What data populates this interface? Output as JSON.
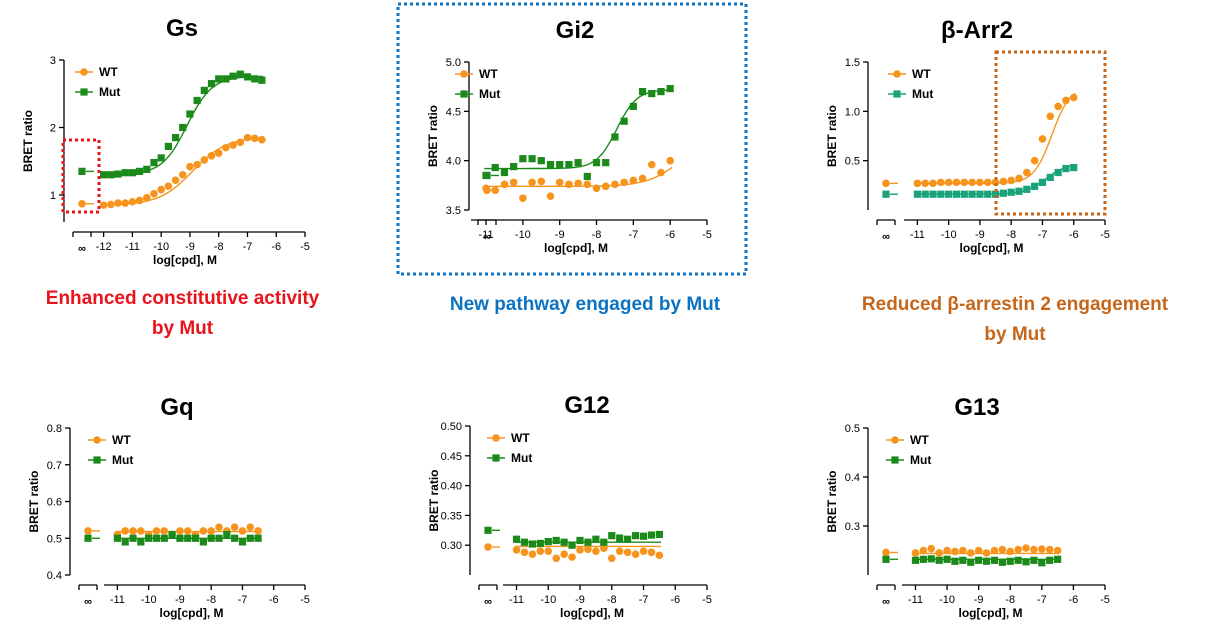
{
  "colors": {
    "wt": "#f7941d",
    "mut": "#1b8a1b",
    "mut_barr": "#1aa37a",
    "red": "#e8131b",
    "blue": "#0c72c2",
    "brown": "#c5661a"
  },
  "captions": [
    {
      "lines": [
        "Enhanced constitutive activity",
        "by Mut"
      ],
      "color_key": "red"
    },
    {
      "lines": [
        "New pathway engaged by Mut"
      ],
      "color_key": "blue"
    },
    {
      "lines": [
        "Reduced β-arrestin 2 engagement",
        "by Mut"
      ],
      "color_key": "brown"
    }
  ],
  "chart_data": [
    {
      "type": "scatter",
      "title": "Gs",
      "xlabel": "log[cpd], M",
      "ylabel": "BRET ratio",
      "xlim": [
        -12.3,
        -5
      ],
      "ylim": [
        0.6,
        3
      ],
      "xticks": [
        -12,
        -11,
        -10,
        -9,
        -8,
        -7,
        -6,
        -5
      ],
      "yticks": [
        1,
        2,
        3
      ],
      "ytick_labels": [
        "1",
        "2",
        "3"
      ],
      "break_tick_label": "∞",
      "legend": "top-left",
      "series": [
        {
          "name": "WT",
          "marker": "circle",
          "color_key": "wt",
          "basal": 0.87,
          "x": [
            -12,
            -11.75,
            -11.5,
            -11.25,
            -11,
            -10.75,
            -10.5,
            -10.25,
            -10,
            -9.75,
            -9.5,
            -9.25,
            -9,
            -8.75,
            -8.5,
            -8.25,
            -8,
            -7.75,
            -7.5,
            -7.25,
            -7,
            -6.75,
            -6.5
          ],
          "y": [
            0.85,
            0.86,
            0.88,
            0.88,
            0.9,
            0.92,
            0.96,
            1.02,
            1.08,
            1.13,
            1.22,
            1.3,
            1.42,
            1.45,
            1.52,
            1.58,
            1.62,
            1.7,
            1.74,
            1.78,
            1.85,
            1.84,
            1.82
          ],
          "fit": {
            "bottom": 0.85,
            "top": 1.86,
            "ec50": -8.9,
            "hill": 0.75
          }
        },
        {
          "name": "Mut",
          "marker": "square",
          "color_key": "mut",
          "basal": 1.35,
          "x": [
            -12,
            -11.75,
            -11.5,
            -11.25,
            -11,
            -10.75,
            -10.5,
            -10.25,
            -10,
            -9.75,
            -9.5,
            -9.25,
            -9,
            -8.75,
            -8.5,
            -8.25,
            -8,
            -7.75,
            -7.5,
            -7.25,
            -7,
            -6.75,
            -6.5
          ],
          "y": [
            1.3,
            1.3,
            1.31,
            1.33,
            1.33,
            1.35,
            1.38,
            1.48,
            1.55,
            1.72,
            1.85,
            2.0,
            2.2,
            2.4,
            2.55,
            2.65,
            2.72,
            2.72,
            2.76,
            2.79,
            2.75,
            2.72,
            2.7
          ],
          "fit": {
            "bottom": 1.3,
            "top": 2.76,
            "ec50": -9.1,
            "hill": 1.0
          }
        }
      ]
    },
    {
      "type": "scatter",
      "title": "Gi2",
      "xlabel": "log[cpd], M",
      "ylabel": "BRET ratio",
      "xlim": [
        -11.3,
        -5
      ],
      "ylim": [
        3.5,
        5.0
      ],
      "xticks": [
        -11,
        -10,
        -9,
        -8,
        -7,
        -6,
        -5
      ],
      "yticks": [
        3.5,
        4.0,
        4.5,
        5.0
      ],
      "ytick_labels": [
        "3.5",
        "4.0",
        "4.5",
        "5.0"
      ],
      "break_tick_label": "∞",
      "legend": "top-left",
      "series": [
        {
          "name": "WT",
          "marker": "circle",
          "color_key": "wt",
          "basal": 3.7,
          "x": [
            -11,
            -10.75,
            -10.5,
            -10.25,
            -10,
            -9.75,
            -9.5,
            -9.25,
            -9,
            -8.75,
            -8.5,
            -8.25,
            -8,
            -7.75,
            -7.5,
            -7.25,
            -7,
            -6.75,
            -6.5,
            -6.25,
            -6
          ],
          "y": [
            3.72,
            3.7,
            3.76,
            3.78,
            3.62,
            3.78,
            3.79,
            3.64,
            3.78,
            3.76,
            3.77,
            3.76,
            3.72,
            3.74,
            3.76,
            3.78,
            3.8,
            3.82,
            3.96,
            3.88,
            4.0
          ],
          "fit": {
            "bottom": 3.74,
            "top": 4.2,
            "ec50": -5.8,
            "hill": 1.0
          }
        },
        {
          "name": "Mut",
          "marker": "square",
          "color_key": "mut",
          "basal": 3.85,
          "x": [
            -11,
            -10.75,
            -10.5,
            -10.25,
            -10,
            -9.75,
            -9.5,
            -9.25,
            -9,
            -8.75,
            -8.5,
            -8.25,
            -8,
            -7.75,
            -7.5,
            -7.25,
            -7,
            -6.75,
            -6.5,
            -6.25,
            -6
          ],
          "y": [
            3.85,
            3.93,
            3.88,
            3.94,
            4.02,
            4.02,
            4.0,
            3.96,
            3.96,
            3.96,
            3.98,
            3.84,
            3.98,
            3.98,
            4.24,
            4.4,
            4.55,
            4.7,
            4.68,
            4.7,
            4.73
          ],
          "fit": {
            "bottom": 3.92,
            "top": 4.72,
            "ec50": -7.45,
            "hill": 1.6
          }
        }
      ]
    },
    {
      "type": "scatter",
      "title": "β-Arr2",
      "xlabel": "log[cpd], M",
      "ylabel": "BRET ratio",
      "xlim": [
        -11.3,
        -5
      ],
      "ylim": [
        0,
        1.5
      ],
      "xticks": [
        -11,
        -10,
        -9,
        -8,
        -7,
        -6,
        -5
      ],
      "yticks": [
        0.5,
        1.0,
        1.5
      ],
      "ytick_labels": [
        "0.5",
        "1.0",
        "1.5"
      ],
      "break_tick_label": "∞",
      "legend": "top-left",
      "series": [
        {
          "name": "WT",
          "marker": "circle",
          "color_key": "wt",
          "basal": 0.27,
          "x": [
            -11,
            -10.75,
            -10.5,
            -10.25,
            -10,
            -9.75,
            -9.5,
            -9.25,
            -9,
            -8.75,
            -8.5,
            -8.25,
            -8,
            -7.75,
            -7.5,
            -7.25,
            -7,
            -6.75,
            -6.5,
            -6.25,
            -6
          ],
          "y": [
            0.27,
            0.27,
            0.27,
            0.28,
            0.28,
            0.28,
            0.28,
            0.28,
            0.28,
            0.28,
            0.28,
            0.29,
            0.3,
            0.32,
            0.38,
            0.5,
            0.72,
            0.95,
            1.05,
            1.11,
            1.14
          ],
          "fit": {
            "bottom": 0.27,
            "top": 1.25,
            "ec50": -6.7,
            "hill": 1.5
          }
        },
        {
          "name": "Mut",
          "marker": "square",
          "color_key": "mut_barr",
          "basal": 0.16,
          "x": [
            -11,
            -10.75,
            -10.5,
            -10.25,
            -10,
            -9.75,
            -9.5,
            -9.25,
            -9,
            -8.75,
            -8.5,
            -8.25,
            -8,
            -7.75,
            -7.5,
            -7.25,
            -7,
            -6.75,
            -6.5,
            -6.25,
            -6
          ],
          "y": [
            0.16,
            0.16,
            0.16,
            0.16,
            0.16,
            0.16,
            0.16,
            0.16,
            0.16,
            0.16,
            0.16,
            0.17,
            0.18,
            0.19,
            0.21,
            0.24,
            0.28,
            0.33,
            0.38,
            0.42,
            0.43
          ],
          "fit": {
            "bottom": 0.16,
            "top": 0.47,
            "ec50": -6.9,
            "hill": 1.3
          }
        }
      ]
    },
    {
      "type": "scatter",
      "title": "Gq",
      "xlabel": "log[cpd], M",
      "ylabel": "BRET ratio",
      "xlim": [
        -11.3,
        -5
      ],
      "ylim": [
        0.4,
        0.8
      ],
      "xticks": [
        -11,
        -10,
        -9,
        -8,
        -7,
        -6,
        -5
      ],
      "yticks": [
        0.4,
        0.5,
        0.6,
        0.7,
        0.8
      ],
      "ytick_labels": [
        "0.4",
        "0.5",
        "0.6",
        "0.7",
        "0.8"
      ],
      "break_tick_label": "∞",
      "legend": "top-left",
      "series": [
        {
          "name": "WT",
          "marker": "circle",
          "color_key": "wt",
          "basal": 0.52,
          "x": [
            -11,
            -10.75,
            -10.5,
            -10.25,
            -10,
            -9.75,
            -9.5,
            -9.25,
            -9,
            -8.75,
            -8.5,
            -8.25,
            -8,
            -7.75,
            -7.5,
            -7.25,
            -7,
            -6.75,
            -6.5
          ],
          "y": [
            0.51,
            0.52,
            0.52,
            0.52,
            0.51,
            0.52,
            0.52,
            0.51,
            0.52,
            0.52,
            0.51,
            0.52,
            0.52,
            0.53,
            0.52,
            0.53,
            0.52,
            0.53,
            0.52
          ],
          "fit": {
            "flat": 0.518
          }
        },
        {
          "name": "Mut",
          "marker": "square",
          "color_key": "mut",
          "basal": 0.5,
          "x": [
            -11,
            -10.75,
            -10.5,
            -10.25,
            -10,
            -9.75,
            -9.5,
            -9.25,
            -9,
            -8.75,
            -8.5,
            -8.25,
            -8,
            -7.75,
            -7.5,
            -7.25,
            -7,
            -6.75,
            -6.5
          ],
          "y": [
            0.5,
            0.49,
            0.5,
            0.49,
            0.5,
            0.5,
            0.5,
            0.51,
            0.5,
            0.5,
            0.5,
            0.49,
            0.5,
            0.5,
            0.51,
            0.5,
            0.49,
            0.5,
            0.5
          ],
          "fit": {
            "flat": 0.5
          }
        }
      ]
    },
    {
      "type": "scatter",
      "title": "G12",
      "xlabel": "log[cpd], M",
      "ylabel": "BRET ratio",
      "xlim": [
        -11.3,
        -5
      ],
      "ylim": [
        0.25,
        0.5
      ],
      "xticks": [
        -11,
        -10,
        -9,
        -8,
        -7,
        -6,
        -5
      ],
      "yticks": [
        0.3,
        0.35,
        0.4,
        0.45,
        0.5
      ],
      "ytick_labels": [
        "0.30",
        "0.35",
        "0.40",
        "0.45",
        "0.50"
      ],
      "break_tick_label": "∞",
      "legend": "top-left",
      "series": [
        {
          "name": "WT",
          "marker": "circle",
          "color_key": "wt",
          "basal": 0.297,
          "x": [
            -11,
            -10.75,
            -10.5,
            -10.25,
            -10,
            -9.75,
            -9.5,
            -9.25,
            -9,
            -8.75,
            -8.5,
            -8.25,
            -8,
            -7.75,
            -7.5,
            -7.25,
            -7,
            -6.75,
            -6.5
          ],
          "y": [
            0.292,
            0.288,
            0.285,
            0.29,
            0.29,
            0.278,
            0.285,
            0.28,
            0.292,
            0.293,
            0.29,
            0.295,
            0.278,
            0.29,
            0.288,
            0.285,
            0.29,
            0.288,
            0.283
          ],
          "fit": {
            "flat": 0.298
          }
        },
        {
          "name": "Mut",
          "marker": "square",
          "color_key": "mut",
          "basal": 0.325,
          "x": [
            -11,
            -10.75,
            -10.5,
            -10.25,
            -10,
            -9.75,
            -9.5,
            -9.25,
            -9,
            -8.75,
            -8.5,
            -8.25,
            -8,
            -7.75,
            -7.5,
            -7.25,
            -7,
            -6.75,
            -6.5
          ],
          "y": [
            0.31,
            0.305,
            0.302,
            0.303,
            0.306,
            0.308,
            0.305,
            0.3,
            0.308,
            0.305,
            0.31,
            0.305,
            0.316,
            0.312,
            0.31,
            0.316,
            0.315,
            0.317,
            0.318
          ],
          "fit": {
            "flat": 0.305
          }
        }
      ]
    },
    {
      "type": "scatter",
      "title": "G13",
      "xlabel": "log[cpd], M",
      "ylabel": "BRET ratio",
      "xlim": [
        -11.3,
        -5
      ],
      "ylim": [
        0.2,
        0.5
      ],
      "xticks": [
        -11,
        -10,
        -9,
        -8,
        -7,
        -6,
        -5
      ],
      "yticks": [
        0.3,
        0.4,
        0.5
      ],
      "ytick_labels": [
        "0.3",
        "0.4",
        "0.5"
      ],
      "break_tick_label": "∞",
      "legend": "top-left",
      "series": [
        {
          "name": "WT",
          "marker": "circle",
          "color_key": "wt",
          "basal": 0.246,
          "x": [
            -11,
            -10.75,
            -10.5,
            -10.25,
            -10,
            -9.75,
            -9.5,
            -9.25,
            -9,
            -8.75,
            -8.5,
            -8.25,
            -8,
            -7.75,
            -7.5,
            -7.25,
            -7,
            -6.75,
            -6.5
          ],
          "y": [
            0.245,
            0.25,
            0.254,
            0.245,
            0.25,
            0.248,
            0.25,
            0.245,
            0.25,
            0.245,
            0.25,
            0.252,
            0.248,
            0.252,
            0.255,
            0.252,
            0.253,
            0.252,
            0.25
          ],
          "fit": {
            "flat": 0.244
          }
        },
        {
          "name": "Mut",
          "marker": "square",
          "color_key": "mut",
          "basal": 0.232,
          "x": [
            -11,
            -10.75,
            -10.5,
            -10.25,
            -10,
            -9.75,
            -9.5,
            -9.25,
            -9,
            -8.75,
            -8.5,
            -8.25,
            -8,
            -7.75,
            -7.5,
            -7.25,
            -7,
            -6.75,
            -6.5
          ],
          "y": [
            0.23,
            0.232,
            0.233,
            0.23,
            0.232,
            0.228,
            0.23,
            0.226,
            0.23,
            0.228,
            0.23,
            0.226,
            0.228,
            0.23,
            0.227,
            0.23,
            0.225,
            0.23,
            0.232
          ],
          "fit": {
            "flat": 0.232
          }
        }
      ]
    }
  ]
}
